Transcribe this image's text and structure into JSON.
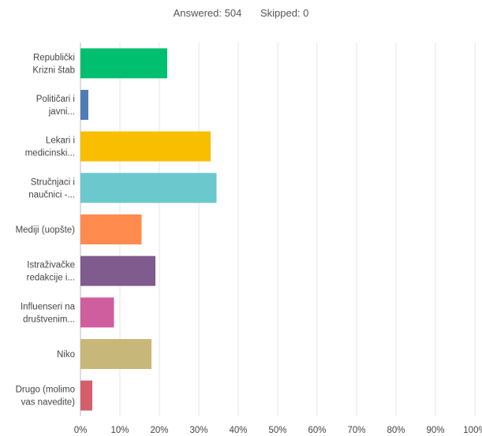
{
  "summary": {
    "answered_label": "Answered:",
    "answered_value": "504",
    "skipped_label": "Skipped:",
    "skipped_value": "0"
  },
  "chart_data": {
    "type": "bar",
    "orientation": "horizontal",
    "categories": [
      [
        "Republički",
        "Krizni štab"
      ],
      [
        "Političari i",
        "javni..."
      ],
      [
        "Lekari i",
        "medicinski..."
      ],
      [
        "Stručnjaci i",
        "naučnici -..."
      ],
      [
        "Mediji (uopšte)"
      ],
      [
        "Istraživačke",
        "redakcije i..."
      ],
      [
        "Influenseri na",
        "društvenim..."
      ],
      [
        "Niko"
      ],
      [
        "Drugo (molimo",
        "vas navedite)"
      ]
    ],
    "values": [
      22,
      2,
      33,
      34.5,
      15.5,
      19,
      8.5,
      18,
      3
    ],
    "colors": [
      "#00bf6f",
      "#507cb6",
      "#f9be00",
      "#6bc8cd",
      "#ff8b4f",
      "#7f5b8e",
      "#cf5e9e",
      "#c7b879",
      "#d25f6a"
    ],
    "xlim": [
      0,
      100
    ],
    "xticks": [
      "0%",
      "10%",
      "20%",
      "30%",
      "40%",
      "50%",
      "60%",
      "70%",
      "80%",
      "90%",
      "100%"
    ],
    "grid": true
  }
}
